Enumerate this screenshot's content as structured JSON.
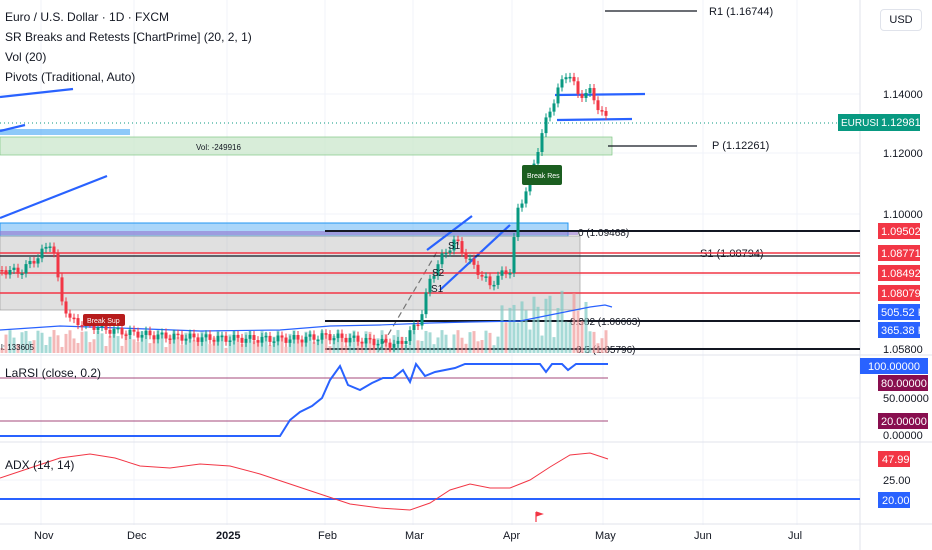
{
  "legend": {
    "symbol": "Euro / U.S. Dollar · 1D · FXCM",
    "ind1": "SR Breaks and Retests [ChartPrime] (20, 2, 1)",
    "ind2": "Vol (20)",
    "ind3": "Pivots (Traditional, Auto)",
    "pane2": "LaRSI (close, 0.2)",
    "pane3": "ADX (14, 14)"
  },
  "currency_button": "USD",
  "chart_data": {
    "type": "candlestick",
    "symbol": "EURUSD",
    "last_price": "1.12981",
    "price_axis_ticks": [
      "1.14000",
      "1.12000",
      "1.10000",
      "1.05800"
    ],
    "price_badges": [
      {
        "label": "EURUSD",
        "value": "1.12981",
        "color": "#089981"
      },
      {
        "value": "1.09502",
        "color": "#f23645"
      },
      {
        "value": "1.08771",
        "color": "#f23645"
      },
      {
        "value": "1.08492",
        "color": "#f23645"
      },
      {
        "value": "1.08079",
        "color": "#f23645"
      },
      {
        "value": "505.52 K",
        "color": "#2962ff"
      },
      {
        "value": "365.38 K",
        "color": "#2962ff"
      }
    ],
    "pivot_labels": [
      {
        "text": "R1 (1.16744)",
        "value": 1.16744
      },
      {
        "text": "P (1.12261)",
        "value": 1.12261
      },
      {
        "text": "S1 (1.08794)",
        "value": 1.08794
      }
    ],
    "fib_labels": [
      {
        "text": "0 (1.09468)",
        "value": 1.09468
      },
      {
        "text": "0.382 (1.06663)",
        "value": 1.06663
      },
      {
        "text": "0.5 (1.05796)",
        "value": 1.05796
      }
    ],
    "zone_labels": [
      "Vol: -249916",
      "Break Res",
      "Break Sup"
    ],
    "pivot_marks": [
      "S1",
      "S2",
      "S1"
    ],
    "volume_label": "l: 133605",
    "x_ticks": [
      "Nov",
      "Dec",
      "2025",
      "Feb",
      "Mar",
      "Apr",
      "May",
      "Jun",
      "Jul"
    ],
    "larsi": {
      "axis_ticks": [
        "50.00000",
        "0.00000"
      ],
      "badges": [
        {
          "value": "100.00000",
          "color": "#2962ff"
        },
        {
          "value": "80.00000",
          "color": "#880e4f"
        },
        {
          "value": "20.00000",
          "color": "#880e4f"
        }
      ],
      "levels": [
        100,
        80,
        20
      ]
    },
    "adx": {
      "axis_ticks": [
        "25.00"
      ],
      "badges": [
        {
          "value": "47.99",
          "color": "#f23645"
        },
        {
          "value": "20.00",
          "color": "#2962ff"
        }
      ],
      "level": 20
    },
    "grid": true
  }
}
